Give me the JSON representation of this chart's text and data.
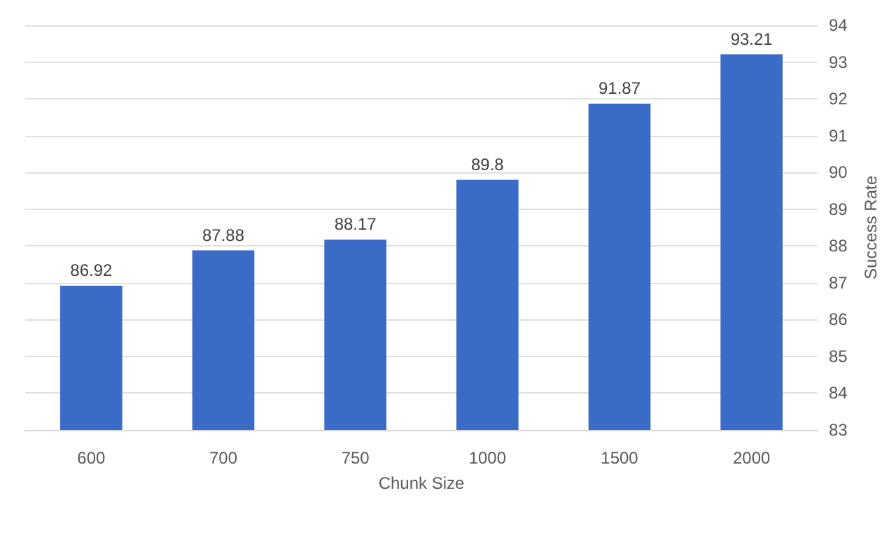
{
  "chart_data": {
    "type": "bar",
    "xlabel": "Chunk Size",
    "ylabel": "Success Rate",
    "categories": [
      "600",
      "700",
      "750",
      "1000",
      "1500",
      "2000"
    ],
    "values": [
      86.92,
      87.88,
      88.17,
      89.8,
      91.87,
      93.21
    ],
    "color": "#3a6bc6",
    "ylim": [
      83,
      94
    ],
    "yticks": [
      83,
      84,
      85,
      86,
      87,
      88,
      89,
      90,
      91,
      92,
      93,
      94
    ],
    "grid": "y",
    "data_labels": true
  }
}
